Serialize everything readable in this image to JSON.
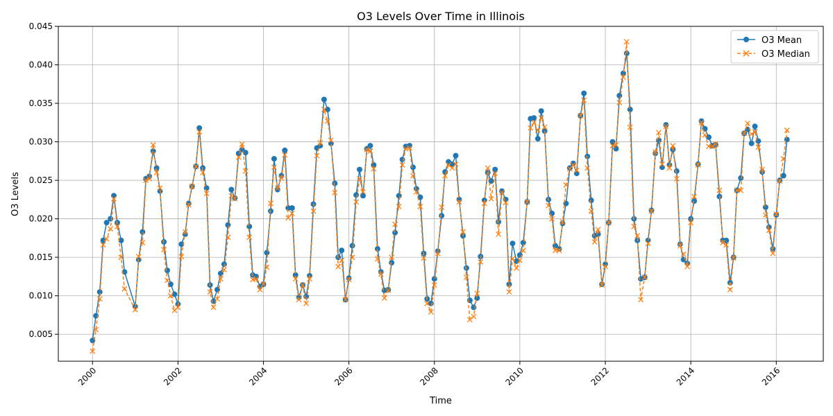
{
  "chart_data": {
    "type": "line",
    "title": "O3 Levels Over Time in Illinois",
    "xlabel": "Time",
    "ylabel": "O3 Levels",
    "x_tick_labels": [
      "2000",
      "2002",
      "2004",
      "2006",
      "2008",
      "2010",
      "2012",
      "2014",
      "2016"
    ],
    "x_tick_values": [
      2000,
      2002,
      2004,
      2006,
      2008,
      2010,
      2012,
      2014,
      2016
    ],
    "y_tick_labels": [
      "0.005",
      "0.010",
      "0.015",
      "0.020",
      "0.025",
      "0.030",
      "0.035",
      "0.040",
      "0.045"
    ],
    "y_tick_values": [
      0.005,
      0.01,
      0.015,
      0.02,
      0.025,
      0.03,
      0.035,
      0.04,
      0.045
    ],
    "xlim": [
      1999.2,
      2017.1
    ],
    "ylim": [
      0.0015,
      0.045
    ],
    "grid": true,
    "legend_position": "top-right",
    "colors": {
      "mean": "#1f77b4",
      "median": "#ff7f0e"
    },
    "x": [
      2000.0,
      2000.08,
      2000.17,
      2000.25,
      2000.33,
      2000.42,
      2000.5,
      2000.58,
      2000.67,
      2000.75,
      2001.0,
      2001.08,
      2001.17,
      2001.25,
      2001.33,
      2001.42,
      2001.5,
      2001.58,
      2001.67,
      2001.75,
      2001.83,
      2001.92,
      2002.0,
      2002.08,
      2002.17,
      2002.25,
      2002.33,
      2002.42,
      2002.5,
      2002.58,
      2002.67,
      2002.75,
      2002.83,
      2002.92,
      2003.0,
      2003.08,
      2003.17,
      2003.25,
      2003.33,
      2003.42,
      2003.5,
      2003.58,
      2003.67,
      2003.75,
      2003.83,
      2003.92,
      2004.0,
      2004.08,
      2004.17,
      2004.25,
      2004.33,
      2004.42,
      2004.5,
      2004.58,
      2004.67,
      2004.75,
      2004.83,
      2004.92,
      2005.0,
      2005.08,
      2005.17,
      2005.25,
      2005.33,
      2005.42,
      2005.5,
      2005.58,
      2005.67,
      2005.75,
      2005.83,
      2005.92,
      2006.0,
      2006.08,
      2006.17,
      2006.25,
      2006.33,
      2006.42,
      2006.5,
      2006.58,
      2006.67,
      2006.75,
      2006.83,
      2006.92,
      2007.0,
      2007.08,
      2007.17,
      2007.25,
      2007.33,
      2007.42,
      2007.5,
      2007.58,
      2007.67,
      2007.75,
      2007.83,
      2007.92,
      2008.0,
      2008.08,
      2008.17,
      2008.25,
      2008.33,
      2008.42,
      2008.5,
      2008.58,
      2008.67,
      2008.75,
      2008.83,
      2008.92,
      2009.0,
      2009.08,
      2009.17,
      2009.25,
      2009.33,
      2009.42,
      2009.5,
      2009.58,
      2009.67,
      2009.75,
      2009.83,
      2009.92,
      2010.0,
      2010.08,
      2010.17,
      2010.25,
      2010.33,
      2010.42,
      2010.5,
      2010.58,
      2010.67,
      2010.75,
      2010.83,
      2010.92,
      2011.0,
      2011.08,
      2011.17,
      2011.25,
      2011.33,
      2011.42,
      2011.5,
      2011.58,
      2011.67,
      2011.75,
      2011.83,
      2011.92,
      2012.0,
      2012.08,
      2012.17,
      2012.25,
      2012.33,
      2012.42,
      2012.5,
      2012.58,
      2012.67,
      2012.75,
      2012.83,
      2012.92,
      2013.0,
      2013.08,
      2013.17,
      2013.25,
      2013.33,
      2013.42,
      2013.5,
      2013.58,
      2013.67,
      2013.75,
      2013.83,
      2013.92,
      2014.0,
      2014.08,
      2014.17,
      2014.25,
      2014.33,
      2014.42,
      2014.5,
      2014.58,
      2014.67,
      2014.75,
      2014.83,
      2014.92,
      2015.0,
      2015.08,
      2015.17,
      2015.25,
      2015.33,
      2015.42,
      2015.5,
      2015.58,
      2015.67,
      2015.75,
      2015.83,
      2015.92,
      2016.0,
      2016.08,
      2016.17,
      2016.25
    ],
    "series": [
      {
        "name": "O3 Mean",
        "style": "solid-circle",
        "values": [
          0.0042,
          0.0074,
          0.0105,
          0.0172,
          0.0195,
          0.02,
          0.023,
          0.0195,
          0.0172,
          0.0131,
          0.0086,
          0.0147,
          0.0183,
          0.0252,
          0.0255,
          0.0288,
          0.0266,
          0.0236,
          0.017,
          0.0133,
          0.0115,
          0.0102,
          0.0089,
          0.0167,
          0.018,
          0.022,
          0.0242,
          0.0268,
          0.0318,
          0.0266,
          0.024,
          0.0114,
          0.0093,
          0.0108,
          0.0129,
          0.0141,
          0.0192,
          0.0238,
          0.0227,
          0.0285,
          0.029,
          0.0286,
          0.019,
          0.0127,
          0.0125,
          0.0112,
          0.0115,
          0.0156,
          0.021,
          0.0278,
          0.0238,
          0.0256,
          0.0289,
          0.0214,
          0.0214,
          0.0127,
          0.0098,
          0.0114,
          0.0099,
          0.0126,
          0.0219,
          0.0292,
          0.0295,
          0.0355,
          0.0342,
          0.0298,
          0.0246,
          0.015,
          0.0159,
          0.0095,
          0.0123,
          0.0165,
          0.0231,
          0.0264,
          0.023,
          0.0291,
          0.0295,
          0.027,
          0.0161,
          0.0131,
          0.0107,
          0.0108,
          0.0143,
          0.0182,
          0.023,
          0.0277,
          0.0294,
          0.0295,
          0.0267,
          0.0239,
          0.0228,
          0.0155,
          0.0096,
          0.009,
          0.0122,
          0.0158,
          0.0204,
          0.0261,
          0.0274,
          0.0271,
          0.0282,
          0.0225,
          0.0178,
          0.0136,
          0.0094,
          0.0085,
          0.0097,
          0.0151,
          0.0224,
          0.026,
          0.0249,
          0.0264,
          0.0196,
          0.0236,
          0.0225,
          0.0115,
          0.0168,
          0.0145,
          0.0153,
          0.0169,
          0.0222,
          0.033,
          0.0331,
          0.0304,
          0.034,
          0.0314,
          0.0225,
          0.0207,
          0.0165,
          0.0161,
          0.0194,
          0.022,
          0.0266,
          0.0272,
          0.0259,
          0.0334,
          0.0363,
          0.0281,
          0.0224,
          0.0178,
          0.018,
          0.0115,
          0.0141,
          0.0195,
          0.03,
          0.0291,
          0.036,
          0.0389,
          0.0415,
          0.0342,
          0.02,
          0.0172,
          0.0122,
          0.0124,
          0.0172,
          0.0211,
          0.0285,
          0.0302,
          0.0267,
          0.0322,
          0.027,
          0.029,
          0.0262,
          0.0167,
          0.0147,
          0.0142,
          0.02,
          0.0223,
          0.0271,
          0.0327,
          0.0317,
          0.0306,
          0.0295,
          0.0296,
          0.0229,
          0.0172,
          0.0172,
          0.0117,
          0.015,
          0.0237,
          0.0253,
          0.0311,
          0.0316,
          0.0298,
          0.032,
          0.0301,
          0.0261,
          0.0215,
          0.0189,
          0.0161,
          0.0205,
          0.025,
          0.0256,
          0.0303
        ]
      },
      {
        "name": "O3 Median",
        "style": "dashed-x",
        "values": [
          0.0028,
          0.0056,
          0.0096,
          0.0166,
          0.0174,
          0.0187,
          0.0226,
          0.019,
          0.015,
          0.0109,
          0.0082,
          0.0151,
          0.0169,
          0.025,
          0.0252,
          0.0296,
          0.026,
          0.024,
          0.016,
          0.012,
          0.01,
          0.0081,
          0.0085,
          0.0151,
          0.0183,
          0.0218,
          0.0242,
          0.0268,
          0.0313,
          0.026,
          0.0233,
          0.0105,
          0.0085,
          0.0096,
          0.0122,
          0.0134,
          0.0176,
          0.023,
          0.0226,
          0.028,
          0.0297,
          0.0262,
          0.0176,
          0.0121,
          0.0122,
          0.0108,
          0.0115,
          0.0137,
          0.022,
          0.0267,
          0.024,
          0.0253,
          0.0283,
          0.0201,
          0.0207,
          0.0122,
          0.0095,
          0.0114,
          0.009,
          0.0122,
          0.021,
          0.0282,
          0.0299,
          0.0342,
          0.0327,
          0.0302,
          0.0234,
          0.0138,
          0.0146,
          0.0095,
          0.0121,
          0.015,
          0.0222,
          0.0252,
          0.0235,
          0.029,
          0.0288,
          0.0265,
          0.0148,
          0.0128,
          0.0097,
          0.0107,
          0.015,
          0.0193,
          0.0216,
          0.027,
          0.0291,
          0.0292,
          0.0256,
          0.0235,
          0.0216,
          0.0149,
          0.009,
          0.0079,
          0.0114,
          0.0155,
          0.0215,
          0.0256,
          0.027,
          0.0266,
          0.0271,
          0.0222,
          0.0183,
          0.0124,
          0.0069,
          0.0073,
          0.0103,
          0.0144,
          0.022,
          0.0266,
          0.0226,
          0.0259,
          0.018,
          0.0234,
          0.0221,
          0.0105,
          0.0148,
          0.0136,
          0.0146,
          0.0159,
          0.0222,
          0.0318,
          0.0325,
          0.0315,
          0.0331,
          0.0319,
          0.0217,
          0.02,
          0.0159,
          0.0159,
          0.0196,
          0.0244,
          0.0265,
          0.027,
          0.0263,
          0.0334,
          0.0354,
          0.0266,
          0.021,
          0.017,
          0.0186,
          0.0114,
          0.0138,
          0.0195,
          0.0295,
          0.0296,
          0.0351,
          0.0384,
          0.043,
          0.0319,
          0.019,
          0.0178,
          0.0095,
          0.0124,
          0.0168,
          0.021,
          0.0287,
          0.0312,
          0.0271,
          0.032,
          0.0266,
          0.0295,
          0.0252,
          0.0165,
          0.0154,
          0.0138,
          0.0195,
          0.0229,
          0.027,
          0.0325,
          0.0309,
          0.0294,
          0.0294,
          0.0297,
          0.0237,
          0.0169,
          0.0166,
          0.0108,
          0.0149,
          0.0237,
          0.0237,
          0.0311,
          0.0324,
          0.031,
          0.0313,
          0.0293,
          0.0264,
          0.0205,
          0.0185,
          0.0155,
          0.0206,
          0.0249,
          0.0278,
          0.0315
        ]
      }
    ]
  }
}
